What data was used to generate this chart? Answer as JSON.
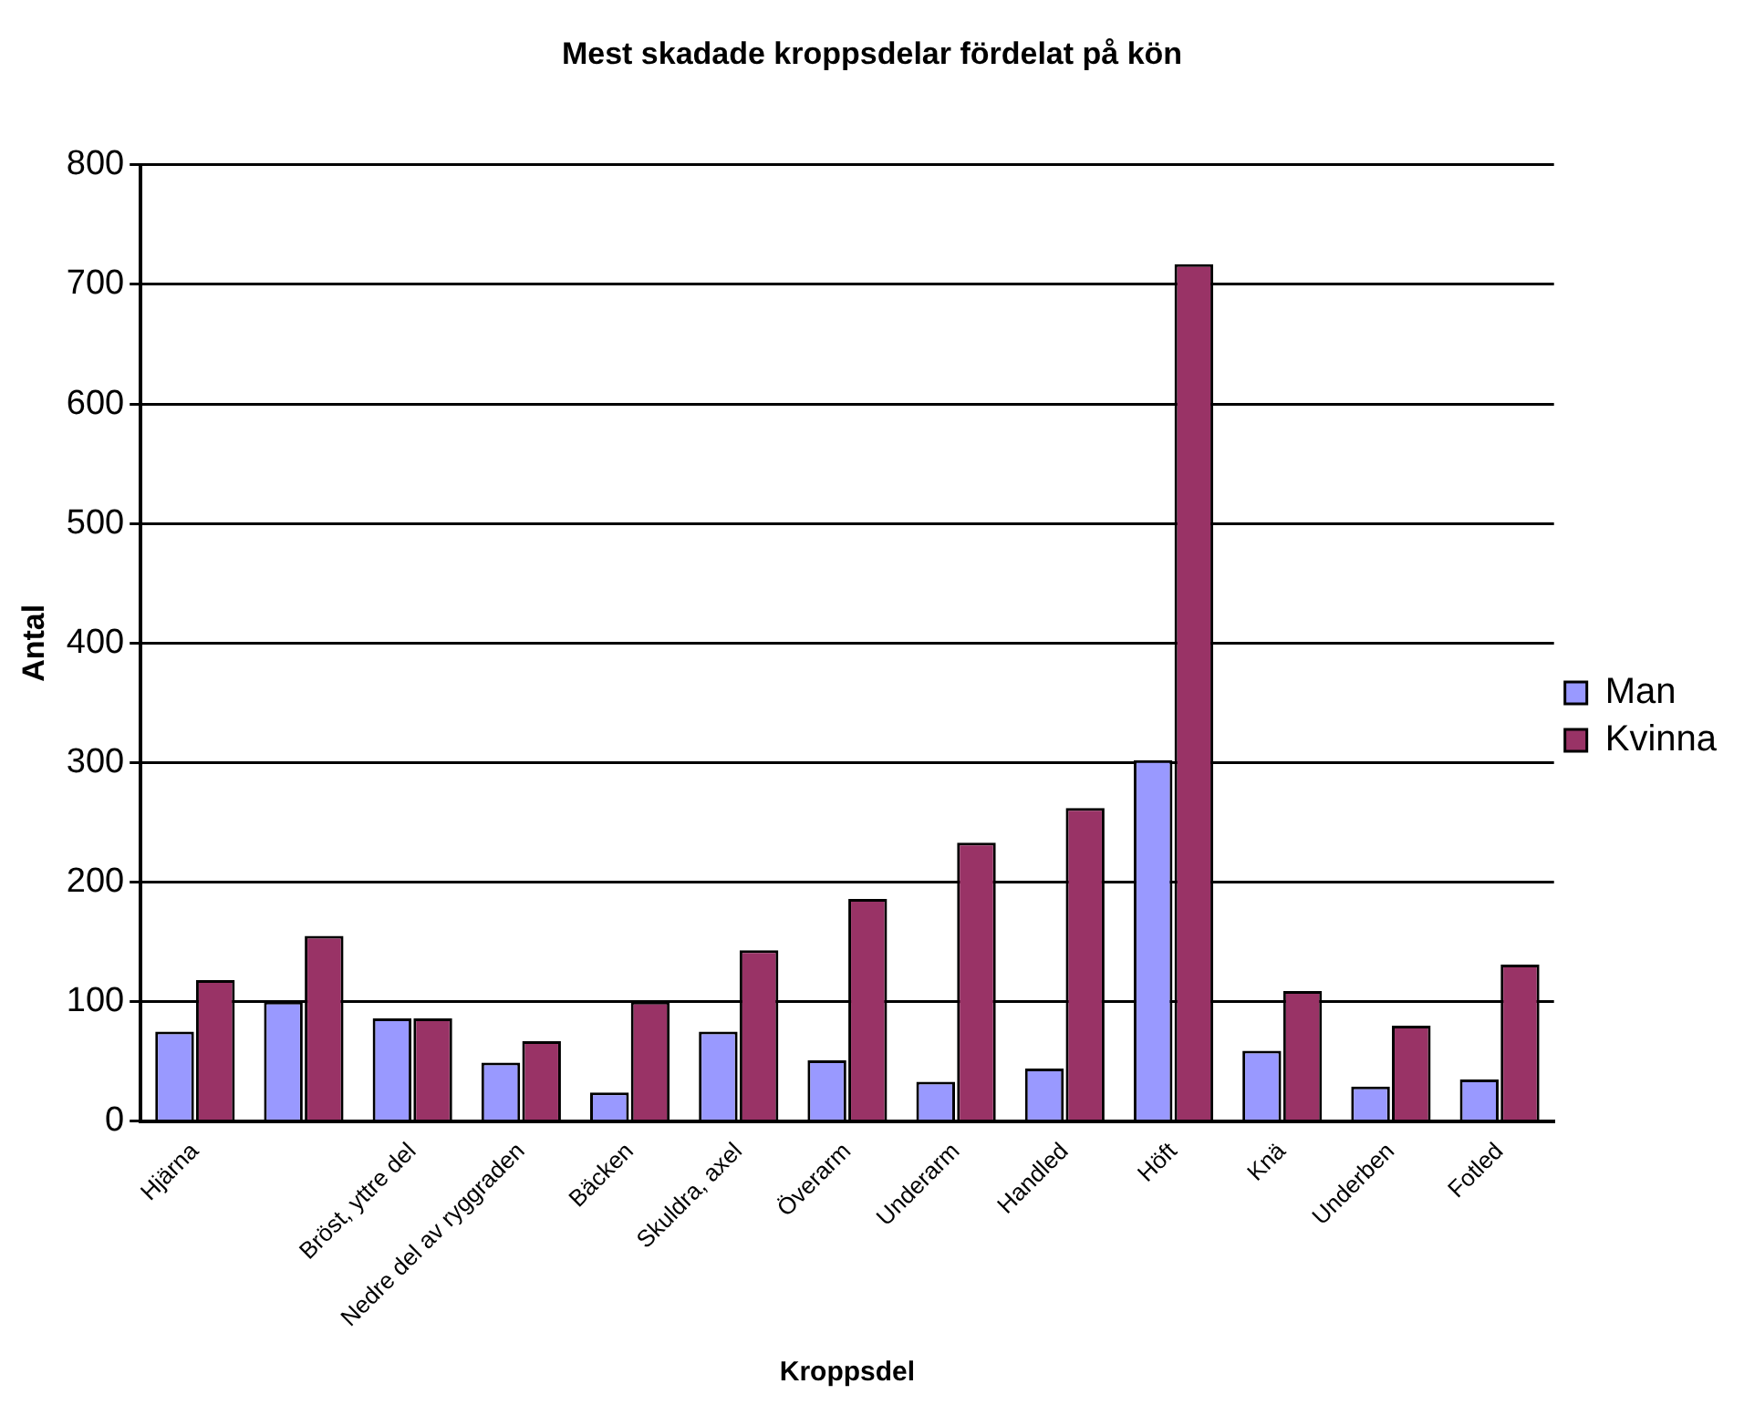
{
  "chart_data": {
    "type": "bar",
    "title": "Mest skadade kroppsdelar fördelat på kön",
    "xlabel": "Kroppsdel",
    "ylabel": "Antal",
    "categories": [
      "Hjärna",
      null,
      "Bröst, yttre del",
      "Nedre del av ryggraden",
      "Bäcken",
      "Skuldra, axel",
      "Överarm",
      "Underarm",
      "Handled",
      "Höft",
      "Knä",
      "Underben",
      "Fotled"
    ],
    "series": [
      {
        "name": "Man",
        "color": "#9999ff",
        "values": [
          75,
          100,
          86,
          49,
          24,
          75,
          51,
          33,
          44,
          302,
          59,
          29,
          35
        ]
      },
      {
        "name": "Kvinna",
        "color": "#993366",
        "values": [
          118,
          155,
          86,
          67,
          100,
          143,
          186,
          233,
          262,
          717,
          109,
          80,
          131
        ]
      }
    ],
    "ylim": [
      0,
      800
    ],
    "yticks": [
      0,
      100,
      200,
      300,
      400,
      500,
      600,
      700,
      800
    ],
    "grid": "y",
    "legend": "right"
  }
}
